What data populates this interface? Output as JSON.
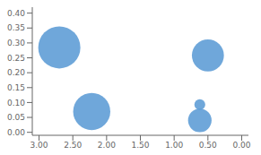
{
  "chart_data": {
    "type": "scatter",
    "x": [
      2.7,
      0.5,
      2.22,
      0.62,
      0.62
    ],
    "values": [
      0.285,
      0.258,
      0.07,
      0.093,
      0.04
    ],
    "sizes": [
      900,
      520,
      700,
      60,
      280
    ],
    "color": "#5B9BD5",
    "xlim": [
      3.1,
      -0.1
    ],
    "ylim": [
      -0.01,
      0.42
    ],
    "xticks": [
      {
        "value": 3.0,
        "label": "3.00"
      },
      {
        "value": 2.5,
        "label": "2.50"
      },
      {
        "value": 2.0,
        "label": "2.00"
      },
      {
        "value": 1.5,
        "label": "1.50"
      },
      {
        "value": 1.0,
        "label": "1.00"
      },
      {
        "value": 0.5,
        "label": "0.50"
      },
      {
        "value": 0.0,
        "label": "0.00"
      }
    ],
    "yticks": [
      {
        "value": 0.0,
        "label": "0.00"
      },
      0.05,
      {
        "value": 0.1,
        "label": "0.10"
      },
      0.15,
      {
        "value": 0.2,
        "label": "0.20"
      },
      0.25,
      {
        "value": 0.3,
        "label": "0.30"
      },
      0.35,
      {
        "value": 0.4,
        "label": "0.40"
      }
    ],
    "grid": false
  }
}
